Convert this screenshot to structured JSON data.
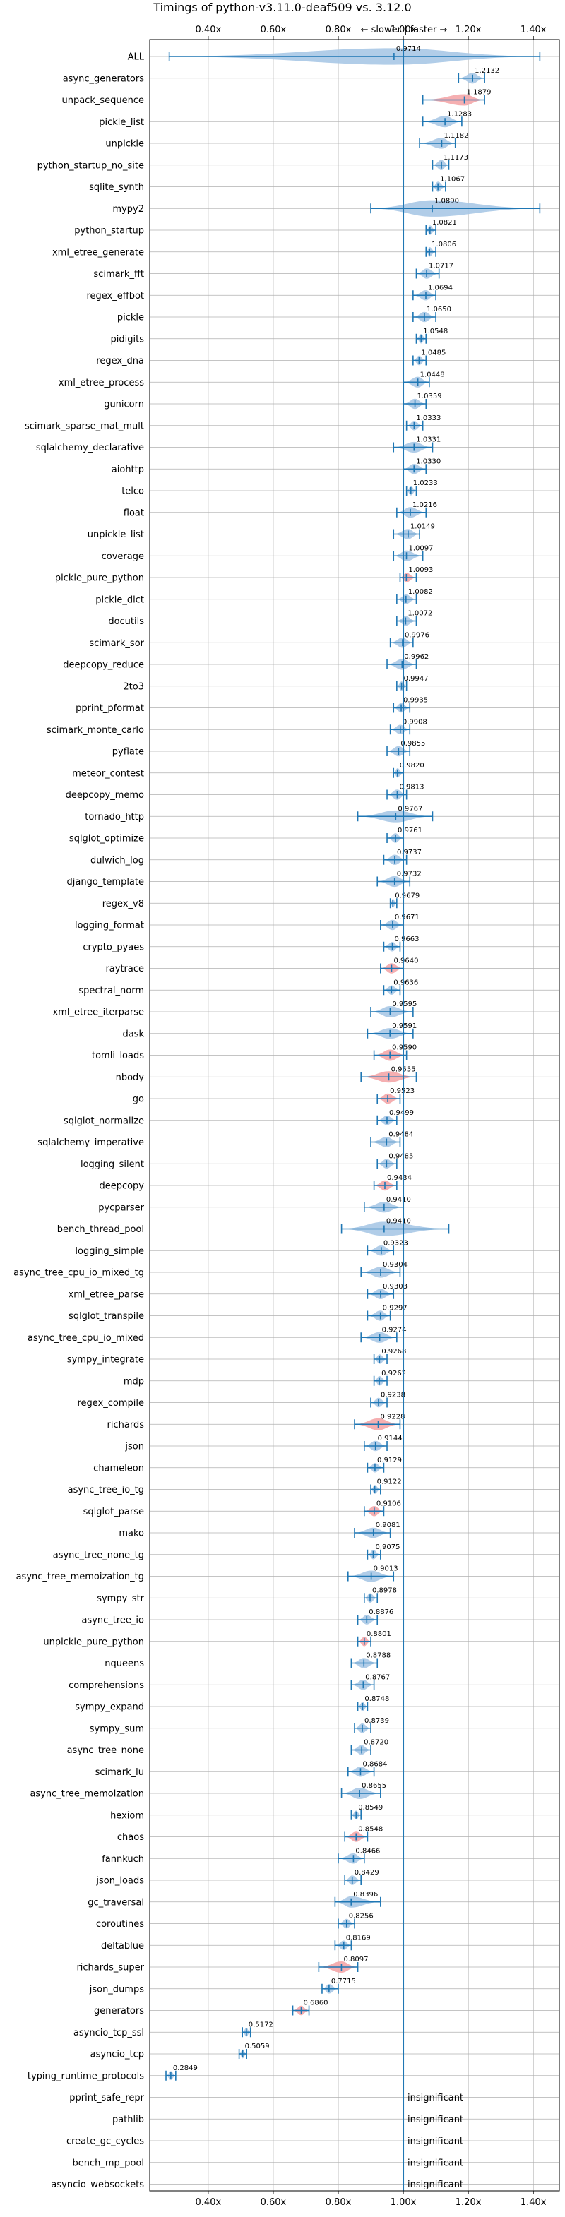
{
  "chart_data": {
    "type": "violin",
    "title": "Timings of python-v3.11.0-deaf509 vs. 3.12.0",
    "subtitle": "← slower | faster →",
    "x_ticks": [
      "0.40x",
      "0.60x",
      "0.80x",
      "1.00x",
      "1.20x",
      "1.40x"
    ],
    "x_tick_values": [
      0.4,
      0.6,
      0.8,
      1.0,
      1.2,
      1.4
    ],
    "xlim": [
      0.22,
      1.48
    ],
    "reference_line": 1.0,
    "grid": true,
    "insignificant_label": "insignificant",
    "colors": {
      "normal": "#1f77b4",
      "normal_fill": "#a9c8e6",
      "highlight_fill": "#f4a6a8"
    },
    "benchmarks": [
      {
        "name": "ALL",
        "value": 0.9714,
        "label": "0.9714",
        "min": 0.28,
        "max": 1.42,
        "spread": 0.14,
        "highlight": false
      },
      {
        "name": "async_generators",
        "value": 1.2132,
        "label": "1.2132",
        "min": 1.17,
        "max": 1.25,
        "spread": 0.04,
        "highlight": false
      },
      {
        "name": "unpack_sequence",
        "value": 1.1879,
        "label": "1.1879",
        "min": 1.06,
        "max": 1.25,
        "spread": 0.05,
        "highlight": true
      },
      {
        "name": "pickle_list",
        "value": 1.1283,
        "label": "1.1283",
        "min": 1.06,
        "max": 1.18,
        "spread": 0.05,
        "highlight": false
      },
      {
        "name": "unpickle",
        "value": 1.1182,
        "label": "1.1182",
        "min": 1.05,
        "max": 1.16,
        "spread": 0.04,
        "highlight": false
      },
      {
        "name": "python_startup_no_site",
        "value": 1.1173,
        "label": "1.1173",
        "min": 1.09,
        "max": 1.14,
        "spread": 0.03,
        "highlight": false
      },
      {
        "name": "sqlite_synth",
        "value": 1.1067,
        "label": "1.1067",
        "min": 1.09,
        "max": 1.13,
        "spread": 0.03,
        "highlight": false
      },
      {
        "name": "mypy2",
        "value": 1.089,
        "label": "1.0890",
        "min": 0.9,
        "max": 1.42,
        "spread": 0.14,
        "highlight": false
      },
      {
        "name": "python_startup",
        "value": 1.0821,
        "label": "1.0821",
        "min": 1.07,
        "max": 1.1,
        "spread": 0.02,
        "highlight": false
      },
      {
        "name": "xml_etree_generate",
        "value": 1.0806,
        "label": "1.0806",
        "min": 1.07,
        "max": 1.1,
        "spread": 0.02,
        "highlight": false
      },
      {
        "name": "scimark_fft",
        "value": 1.0717,
        "label": "1.0717",
        "min": 1.04,
        "max": 1.11,
        "spread": 0.03,
        "highlight": false
      },
      {
        "name": "regex_effbot",
        "value": 1.0694,
        "label": "1.0694",
        "min": 1.03,
        "max": 1.1,
        "spread": 0.03,
        "highlight": false
      },
      {
        "name": "pickle",
        "value": 1.065,
        "label": "1.0650",
        "min": 1.03,
        "max": 1.1,
        "spread": 0.03,
        "highlight": false
      },
      {
        "name": "pidigits",
        "value": 1.0548,
        "label": "1.0548",
        "min": 1.04,
        "max": 1.07,
        "spread": 0.02,
        "highlight": false
      },
      {
        "name": "regex_dna",
        "value": 1.0485,
        "label": "1.0485",
        "min": 1.03,
        "max": 1.07,
        "spread": 0.02,
        "highlight": false
      },
      {
        "name": "xml_etree_process",
        "value": 1.0448,
        "label": "1.0448",
        "min": 1.0,
        "max": 1.08,
        "spread": 0.04,
        "highlight": false
      },
      {
        "name": "gunicorn",
        "value": 1.0359,
        "label": "1.0359",
        "min": 1.0,
        "max": 1.07,
        "spread": 0.03,
        "highlight": false
      },
      {
        "name": "scimark_sparse_mat_mult",
        "value": 1.0333,
        "label": "1.0333",
        "min": 1.01,
        "max": 1.06,
        "spread": 0.02,
        "highlight": false
      },
      {
        "name": "sqlalchemy_declarative",
        "value": 1.0331,
        "label": "1.0331",
        "min": 0.97,
        "max": 1.09,
        "spread": 0.04,
        "highlight": false
      },
      {
        "name": "aiohttp",
        "value": 1.033,
        "label": "1.0330",
        "min": 1.0,
        "max": 1.07,
        "spread": 0.03,
        "highlight": false
      },
      {
        "name": "telco",
        "value": 1.0233,
        "label": "1.0233",
        "min": 1.01,
        "max": 1.04,
        "spread": 0.02,
        "highlight": false
      },
      {
        "name": "float",
        "value": 1.0216,
        "label": "1.0216",
        "min": 0.98,
        "max": 1.07,
        "spread": 0.04,
        "highlight": false
      },
      {
        "name": "unpickle_list",
        "value": 1.0149,
        "label": "1.0149",
        "min": 0.97,
        "max": 1.05,
        "spread": 0.03,
        "highlight": false
      },
      {
        "name": "coverage",
        "value": 1.0097,
        "label": "1.0097",
        "min": 0.97,
        "max": 1.06,
        "spread": 0.04,
        "highlight": false
      },
      {
        "name": "pickle_pure_python",
        "value": 1.0093,
        "label": "1.0093",
        "min": 0.99,
        "max": 1.04,
        "spread": 0.02,
        "highlight": true
      },
      {
        "name": "pickle_dict",
        "value": 1.0082,
        "label": "1.0082",
        "min": 0.98,
        "max": 1.04,
        "spread": 0.02,
        "highlight": false
      },
      {
        "name": "docutils",
        "value": 1.0072,
        "label": "1.0072",
        "min": 0.98,
        "max": 1.04,
        "spread": 0.02,
        "highlight": false
      },
      {
        "name": "scimark_sor",
        "value": 0.9976,
        "label": "0.9976",
        "min": 0.96,
        "max": 1.03,
        "spread": 0.03,
        "highlight": false
      },
      {
        "name": "deepcopy_reduce",
        "value": 0.9962,
        "label": "0.9962",
        "min": 0.95,
        "max": 1.04,
        "spread": 0.04,
        "highlight": false
      },
      {
        "name": "2to3",
        "value": 0.9947,
        "label": "0.9947",
        "min": 0.98,
        "max": 1.01,
        "spread": 0.02,
        "highlight": false
      },
      {
        "name": "pprint_pformat",
        "value": 0.9935,
        "label": "0.9935",
        "min": 0.97,
        "max": 1.02,
        "spread": 0.02,
        "highlight": false
      },
      {
        "name": "scimark_monte_carlo",
        "value": 0.9908,
        "label": "0.9908",
        "min": 0.96,
        "max": 1.02,
        "spread": 0.02,
        "highlight": false
      },
      {
        "name": "pyflate",
        "value": 0.9855,
        "label": "0.9855",
        "min": 0.95,
        "max": 1.02,
        "spread": 0.03,
        "highlight": false
      },
      {
        "name": "meteor_contest",
        "value": 0.982,
        "label": "0.9820",
        "min": 0.97,
        "max": 1.0,
        "spread": 0.02,
        "highlight": false
      },
      {
        "name": "deepcopy_memo",
        "value": 0.9813,
        "label": "0.9813",
        "min": 0.95,
        "max": 1.01,
        "spread": 0.03,
        "highlight": false
      },
      {
        "name": "tornado_http",
        "value": 0.9767,
        "label": "0.9767",
        "min": 0.86,
        "max": 1.09,
        "spread": 0.06,
        "highlight": false
      },
      {
        "name": "sqlglot_optimize",
        "value": 0.9761,
        "label": "0.9761",
        "min": 0.95,
        "max": 1.0,
        "spread": 0.02,
        "highlight": false
      },
      {
        "name": "dulwich_log",
        "value": 0.9737,
        "label": "0.9737",
        "min": 0.94,
        "max": 1.01,
        "spread": 0.03,
        "highlight": false
      },
      {
        "name": "django_template",
        "value": 0.9732,
        "label": "0.9732",
        "min": 0.92,
        "max": 1.02,
        "spread": 0.04,
        "highlight": false
      },
      {
        "name": "regex_v8",
        "value": 0.9679,
        "label": "0.9679",
        "min": 0.96,
        "max": 0.98,
        "spread": 0.01,
        "highlight": false
      },
      {
        "name": "logging_format",
        "value": 0.9671,
        "label": "0.9671",
        "min": 0.93,
        "max": 1.0,
        "spread": 0.03,
        "highlight": false
      },
      {
        "name": "crypto_pyaes",
        "value": 0.9663,
        "label": "0.9663",
        "min": 0.94,
        "max": 0.99,
        "spread": 0.02,
        "highlight": false
      },
      {
        "name": "raytrace",
        "value": 0.964,
        "label": "0.9640",
        "min": 0.93,
        "max": 1.0,
        "spread": 0.03,
        "highlight": true
      },
      {
        "name": "spectral_norm",
        "value": 0.9636,
        "label": "0.9636",
        "min": 0.94,
        "max": 0.99,
        "spread": 0.02,
        "highlight": false
      },
      {
        "name": "xml_etree_iterparse",
        "value": 0.9595,
        "label": "0.9595",
        "min": 0.9,
        "max": 1.03,
        "spread": 0.05,
        "highlight": false
      },
      {
        "name": "dask",
        "value": 0.9591,
        "label": "0.9591",
        "min": 0.89,
        "max": 1.03,
        "spread": 0.04,
        "highlight": false
      },
      {
        "name": "tomli_loads",
        "value": 0.959,
        "label": "0.9590",
        "min": 0.91,
        "max": 1.01,
        "spread": 0.05,
        "highlight": true
      },
      {
        "name": "nbody",
        "value": 0.9555,
        "label": "0.9555",
        "min": 0.87,
        "max": 1.04,
        "spread": 0.05,
        "highlight": true
      },
      {
        "name": "go",
        "value": 0.9523,
        "label": "0.9523",
        "min": 0.92,
        "max": 0.99,
        "spread": 0.03,
        "highlight": true
      },
      {
        "name": "sqlglot_normalize",
        "value": 0.9499,
        "label": "0.9499",
        "min": 0.92,
        "max": 0.98,
        "spread": 0.02,
        "highlight": false
      },
      {
        "name": "sqlalchemy_imperative",
        "value": 0.9484,
        "label": "0.9484",
        "min": 0.9,
        "max": 0.99,
        "spread": 0.03,
        "highlight": false
      },
      {
        "name": "logging_silent",
        "value": 0.9485,
        "label": "0.9485",
        "min": 0.92,
        "max": 0.98,
        "spread": 0.02,
        "highlight": false
      },
      {
        "name": "deepcopy",
        "value": 0.9434,
        "label": "0.9434",
        "min": 0.91,
        "max": 0.98,
        "spread": 0.03,
        "highlight": true
      },
      {
        "name": "pycparser",
        "value": 0.941,
        "label": "0.9410",
        "min": 0.88,
        "max": 1.0,
        "spread": 0.04,
        "highlight": false
      },
      {
        "name": "bench_thread_pool",
        "value": 0.941,
        "label": "0.9410",
        "min": 0.81,
        "max": 1.14,
        "spread": 0.1,
        "highlight": false
      },
      {
        "name": "logging_simple",
        "value": 0.9323,
        "label": "0.9323",
        "min": 0.89,
        "max": 0.97,
        "spread": 0.03,
        "highlight": false
      },
      {
        "name": "async_tree_cpu_io_mixed_tg",
        "value": 0.9304,
        "label": "0.9304",
        "min": 0.87,
        "max": 0.99,
        "spread": 0.04,
        "highlight": false
      },
      {
        "name": "xml_etree_parse",
        "value": 0.9303,
        "label": "0.9303",
        "min": 0.89,
        "max": 0.97,
        "spread": 0.03,
        "highlight": false
      },
      {
        "name": "sqlglot_transpile",
        "value": 0.9297,
        "label": "0.9297",
        "min": 0.89,
        "max": 0.96,
        "spread": 0.03,
        "highlight": false
      },
      {
        "name": "async_tree_cpu_io_mixed",
        "value": 0.9274,
        "label": "0.9274",
        "min": 0.87,
        "max": 0.98,
        "spread": 0.04,
        "highlight": false
      },
      {
        "name": "sympy_integrate",
        "value": 0.9268,
        "label": "0.9268",
        "min": 0.91,
        "max": 0.95,
        "spread": 0.02,
        "highlight": false
      },
      {
        "name": "mdp",
        "value": 0.9262,
        "label": "0.9262",
        "min": 0.91,
        "max": 0.95,
        "spread": 0.02,
        "highlight": false
      },
      {
        "name": "regex_compile",
        "value": 0.9238,
        "label": "0.9238",
        "min": 0.9,
        "max": 0.95,
        "spread": 0.02,
        "highlight": false
      },
      {
        "name": "richards",
        "value": 0.9228,
        "label": "0.9228",
        "min": 0.85,
        "max": 0.99,
        "spread": 0.06,
        "highlight": true
      },
      {
        "name": "json",
        "value": 0.9144,
        "label": "0.9144",
        "min": 0.88,
        "max": 0.95,
        "spread": 0.03,
        "highlight": false
      },
      {
        "name": "chameleon",
        "value": 0.9129,
        "label": "0.9129",
        "min": 0.89,
        "max": 0.94,
        "spread": 0.02,
        "highlight": false
      },
      {
        "name": "async_tree_io_tg",
        "value": 0.9122,
        "label": "0.9122",
        "min": 0.9,
        "max": 0.93,
        "spread": 0.01,
        "highlight": false
      },
      {
        "name": "sqlglot_parse",
        "value": 0.9106,
        "label": "0.9106",
        "min": 0.88,
        "max": 0.94,
        "spread": 0.03,
        "highlight": true
      },
      {
        "name": "mako",
        "value": 0.9081,
        "label": "0.9081",
        "min": 0.85,
        "max": 0.96,
        "spread": 0.03,
        "highlight": false
      },
      {
        "name": "async_tree_none_tg",
        "value": 0.9075,
        "label": "0.9075",
        "min": 0.89,
        "max": 0.93,
        "spread": 0.02,
        "highlight": false
      },
      {
        "name": "async_tree_memoization_tg",
        "value": 0.9013,
        "label": "0.9013",
        "min": 0.83,
        "max": 0.97,
        "spread": 0.05,
        "highlight": false
      },
      {
        "name": "sympy_str",
        "value": 0.8978,
        "label": "0.8978",
        "min": 0.88,
        "max": 0.92,
        "spread": 0.02,
        "highlight": false
      },
      {
        "name": "async_tree_io",
        "value": 0.8876,
        "label": "0.8876",
        "min": 0.86,
        "max": 0.92,
        "spread": 0.02,
        "highlight": false
      },
      {
        "name": "unpickle_pure_python",
        "value": 0.8801,
        "label": "0.8801",
        "min": 0.86,
        "max": 0.9,
        "spread": 0.02,
        "highlight": true
      },
      {
        "name": "nqueens",
        "value": 0.8788,
        "label": "0.8788",
        "min": 0.84,
        "max": 0.92,
        "spread": 0.03,
        "highlight": false
      },
      {
        "name": "comprehensions",
        "value": 0.8767,
        "label": "0.8767",
        "min": 0.84,
        "max": 0.91,
        "spread": 0.03,
        "highlight": false
      },
      {
        "name": "sympy_expand",
        "value": 0.8748,
        "label": "0.8748",
        "min": 0.86,
        "max": 0.89,
        "spread": 0.02,
        "highlight": false
      },
      {
        "name": "sympy_sum",
        "value": 0.8739,
        "label": "0.8739",
        "min": 0.85,
        "max": 0.9,
        "spread": 0.02,
        "highlight": false
      },
      {
        "name": "async_tree_none",
        "value": 0.872,
        "label": "0.8720",
        "min": 0.84,
        "max": 0.9,
        "spread": 0.02,
        "highlight": false
      },
      {
        "name": "scimark_lu",
        "value": 0.8684,
        "label": "0.8684",
        "min": 0.83,
        "max": 0.91,
        "spread": 0.03,
        "highlight": false
      },
      {
        "name": "async_tree_memoization",
        "value": 0.8655,
        "label": "0.8655",
        "min": 0.81,
        "max": 0.93,
        "spread": 0.05,
        "highlight": false
      },
      {
        "name": "hexiom",
        "value": 0.8549,
        "label": "0.8549",
        "min": 0.84,
        "max": 0.87,
        "spread": 0.01,
        "highlight": false
      },
      {
        "name": "chaos",
        "value": 0.8548,
        "label": "0.8548",
        "min": 0.82,
        "max": 0.89,
        "spread": 0.03,
        "highlight": true
      },
      {
        "name": "fannkuch",
        "value": 0.8466,
        "label": "0.8466",
        "min": 0.8,
        "max": 0.88,
        "spread": 0.03,
        "highlight": false
      },
      {
        "name": "json_loads",
        "value": 0.8429,
        "label": "0.8429",
        "min": 0.82,
        "max": 0.87,
        "spread": 0.02,
        "highlight": false
      },
      {
        "name": "gc_traversal",
        "value": 0.8396,
        "label": "0.8396",
        "min": 0.79,
        "max": 0.93,
        "spread": 0.05,
        "highlight": false
      },
      {
        "name": "coroutines",
        "value": 0.8256,
        "label": "0.8256",
        "min": 0.8,
        "max": 0.85,
        "spread": 0.02,
        "highlight": false
      },
      {
        "name": "deltablue",
        "value": 0.8169,
        "label": "0.8169",
        "min": 0.79,
        "max": 0.84,
        "spread": 0.02,
        "highlight": false
      },
      {
        "name": "richards_super",
        "value": 0.8097,
        "label": "0.8097",
        "min": 0.74,
        "max": 0.86,
        "spread": 0.05,
        "highlight": true
      },
      {
        "name": "json_dumps",
        "value": 0.7715,
        "label": "0.7715",
        "min": 0.75,
        "max": 0.8,
        "spread": 0.02,
        "highlight": false
      },
      {
        "name": "generators",
        "value": 0.686,
        "label": "0.6860",
        "min": 0.66,
        "max": 0.71,
        "spread": 0.02,
        "highlight": true
      },
      {
        "name": "asyncio_tcp_ssl",
        "value": 0.5172,
        "label": "0.5172",
        "min": 0.505,
        "max": 0.53,
        "spread": 0.01,
        "highlight": false
      },
      {
        "name": "asyncio_tcp",
        "value": 0.5059,
        "label": "0.5059",
        "min": 0.495,
        "max": 0.518,
        "spread": 0.01,
        "highlight": false
      },
      {
        "name": "typing_runtime_protocols",
        "value": 0.2849,
        "label": "0.2849",
        "min": 0.27,
        "max": 0.3,
        "spread": 0.01,
        "highlight": false
      },
      {
        "name": "pprint_safe_repr",
        "value": null,
        "label": "",
        "insignificant": true
      },
      {
        "name": "pathlib",
        "value": null,
        "label": "",
        "insignificant": true
      },
      {
        "name": "create_gc_cycles",
        "value": null,
        "label": "",
        "insignificant": true
      },
      {
        "name": "bench_mp_pool",
        "value": null,
        "label": "",
        "insignificant": true
      },
      {
        "name": "asyncio_websockets",
        "value": null,
        "label": "",
        "insignificant": true
      }
    ]
  }
}
